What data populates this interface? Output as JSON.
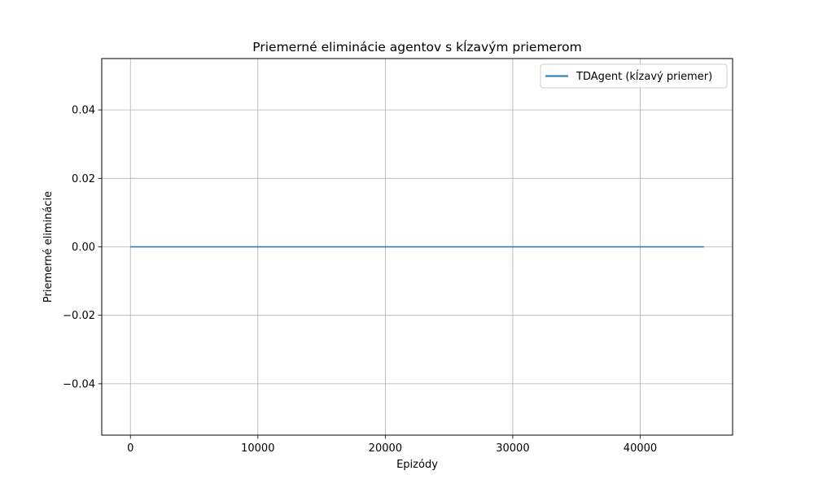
{
  "chart_data": {
    "type": "line",
    "title": "Priemerné eliminácie agentov s kĺzavým priemerom",
    "xlabel": "Epizódy",
    "ylabel": "Priemerné eliminácie",
    "xlim": [
      -2250,
      47250
    ],
    "ylim": [
      -0.055,
      0.055
    ],
    "xticks": [
      0,
      10000,
      20000,
      30000,
      40000
    ],
    "xtick_labels": [
      "0",
      "10000",
      "20000",
      "30000",
      "40000"
    ],
    "yticks": [
      0.04,
      0.02,
      0.0,
      -0.02,
      -0.04
    ],
    "ytick_labels": [
      "0.04",
      "0.02",
      "0.00",
      "−0.02",
      "−0.04"
    ],
    "grid": true,
    "legend_position": "top-right",
    "series": [
      {
        "name": "TDAgent (kĺzavý priemer)",
        "color": "#1f77b4",
        "x": [
          0,
          45000
        ],
        "y": [
          0.0,
          0.0
        ]
      }
    ]
  }
}
